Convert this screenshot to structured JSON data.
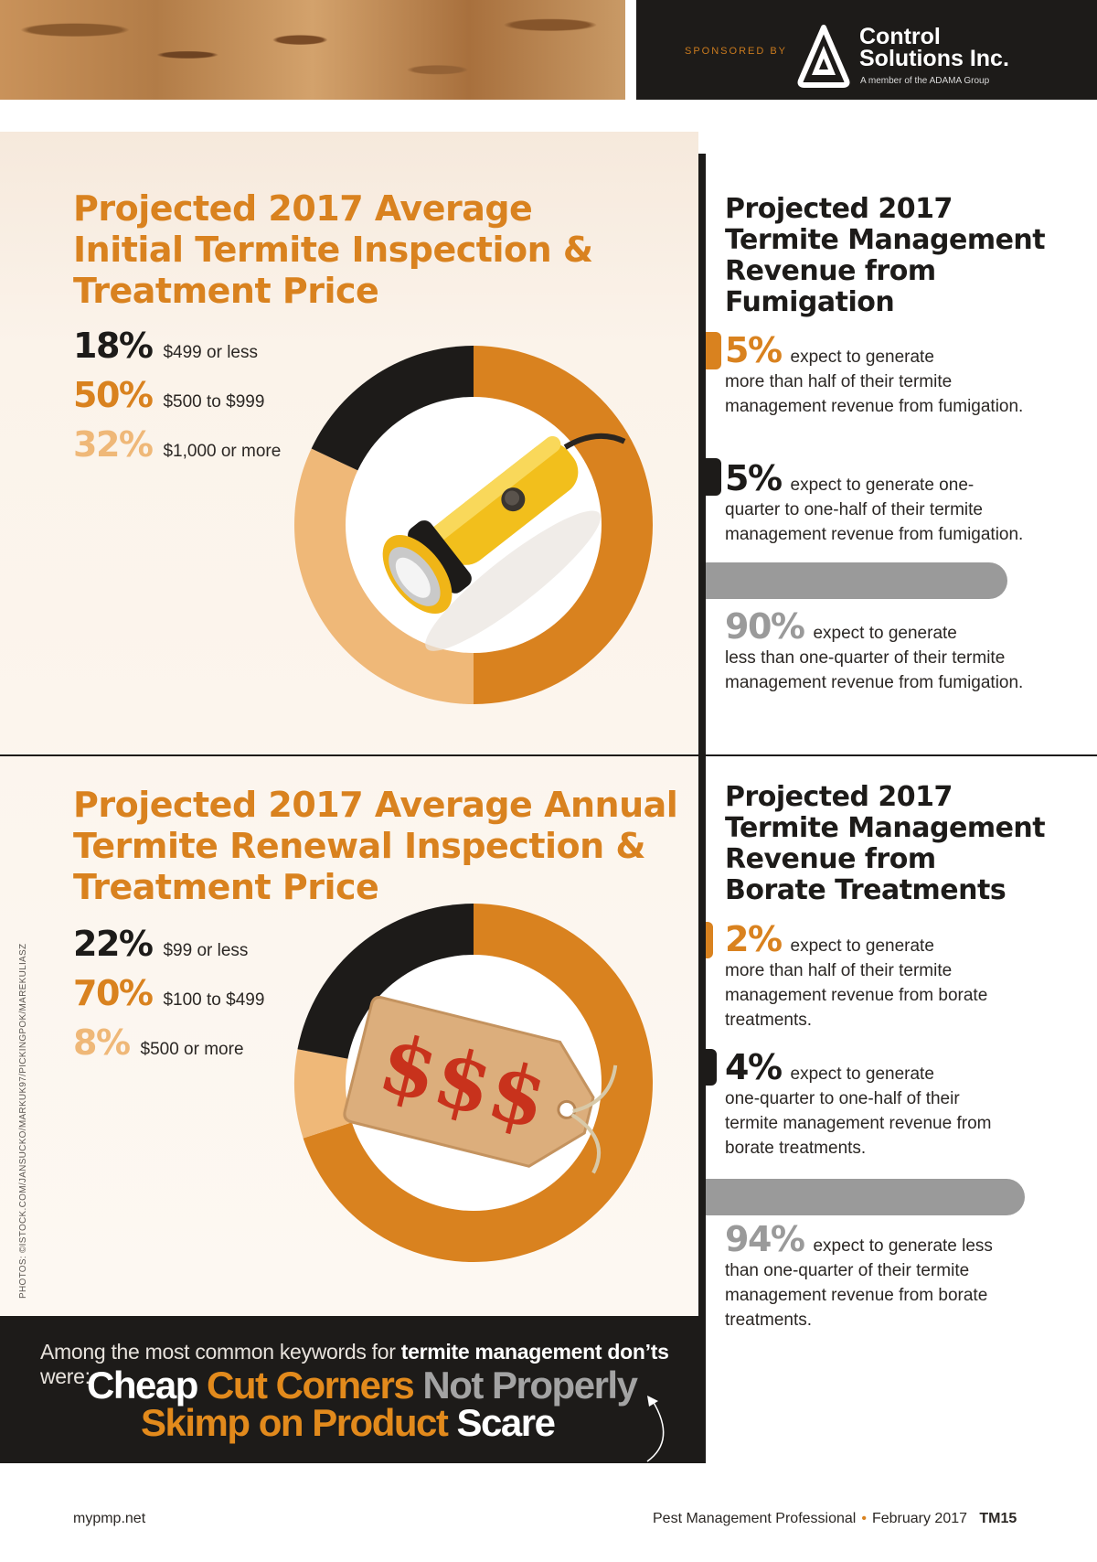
{
  "header": {
    "sponsored_by": "SPONSORED BY",
    "brand_name_line1": "Control",
    "brand_name_line2": "Solutions Inc.",
    "brand_tagline": "A member of the ADAMA Group"
  },
  "colors": {
    "dark": "#1d1b19",
    "orange": "#d9821f",
    "light_orange": "#efb878",
    "grey": "#9a9a9a",
    "cream": "#fdf8f2"
  },
  "initial_price": {
    "title_line1": "Projected 2017 Average",
    "title_line2": "Initial Termite Inspection &",
    "title_line3": "Treatment Price",
    "legend": [
      {
        "pct": "18%",
        "label": "$499 or less"
      },
      {
        "pct": "50%",
        "label": "$500 to $999"
      },
      {
        "pct": "32%",
        "label": "$1,000 or more"
      }
    ],
    "center_image": "flashlight"
  },
  "renewal_price": {
    "title_line1": "Projected 2017 Average Annual",
    "title_line2": "Termite Renewal Inspection &",
    "title_line3": "Treatment Price",
    "legend": [
      {
        "pct": "22%",
        "label": "$99 or less"
      },
      {
        "pct": "70%",
        "label": "$100 to $499"
      },
      {
        "pct": "8%",
        "label": "$500 or more"
      }
    ],
    "center_image": "price-tag",
    "price_tag_text": "$$$"
  },
  "fumigation": {
    "title_line1": "Projected 2017",
    "title_line2": "Termite Management",
    "title_line3": "Revenue from",
    "title_line4": "Fumigation",
    "stats": [
      {
        "pct": "5%",
        "text_first": "expect to generate",
        "text_rest": "more than half of their termite management revenue from fumigation."
      },
      {
        "pct": "5%",
        "text_first": "expect to generate one-",
        "text_rest": "quarter to one-half of their termite management revenue from fumigation."
      },
      {
        "pct": "90%",
        "text_first": "expect to generate",
        "text_rest": "less than one-quarter of their termite management revenue from fumigation."
      }
    ]
  },
  "borate": {
    "title_line1": "Projected 2017",
    "title_line2": "Termite Management",
    "title_line3": "Revenue from",
    "title_line4": "Borate Treatments",
    "stats": [
      {
        "pct": "2%",
        "text_first": "expect to generate",
        "text_rest": "more than half of their termite management revenue from borate treatments."
      },
      {
        "pct": "4%",
        "text_first": "expect to generate",
        "text_rest": "one-quarter to one-half of their termite management revenue from borate treatments."
      },
      {
        "pct": "94%",
        "text_first": "expect to generate less",
        "text_rest": "than one-quarter of their termite management revenue from borate treatments."
      }
    ]
  },
  "keywords": {
    "intro_start": "Among the most common keywords for ",
    "intro_bold": "termite management don’ts",
    "intro_end": " were:",
    "words": [
      "Cheap",
      "Cut Corners",
      "Not Properly",
      "Skimp on Product",
      "Scare"
    ]
  },
  "photo_credit": "PHOTOS: ©ISTOCK.COM/JANSUCKO/MARKUK97/PICKINGPOK/MAREKULIASZ",
  "footer": {
    "site": "mypmp.net",
    "publication": "Pest Management Professional",
    "date": "February 2017",
    "page": "TM15"
  },
  "chart_data": [
    {
      "type": "pie",
      "title": "Projected 2017 Average Initial Termite Inspection & Treatment Price",
      "categories": [
        "$499 or less",
        "$500 to $999",
        "$1,000 or more"
      ],
      "values": [
        18,
        50,
        32
      ],
      "colors": [
        "#1d1b19",
        "#d9821f",
        "#efb878"
      ],
      "unit": "%"
    },
    {
      "type": "pie",
      "title": "Projected 2017 Average Annual Termite Renewal Inspection & Treatment Price",
      "categories": [
        "$99 or less",
        "$100 to $499",
        "$500 or more"
      ],
      "values": [
        22,
        70,
        8
      ],
      "colors": [
        "#1d1b19",
        "#d9821f",
        "#efb878"
      ],
      "unit": "%"
    },
    {
      "type": "table",
      "title": "Projected 2017 Termite Management Revenue from Fumigation",
      "categories": [
        "more than half",
        "one-quarter to one-half",
        "less than one-quarter"
      ],
      "values": [
        5,
        5,
        90
      ],
      "unit": "%"
    },
    {
      "type": "table",
      "title": "Projected 2017 Termite Management Revenue from Borate Treatments",
      "categories": [
        "more than half",
        "one-quarter to one-half",
        "less than one-quarter"
      ],
      "values": [
        2,
        4,
        94
      ],
      "unit": "%"
    }
  ]
}
